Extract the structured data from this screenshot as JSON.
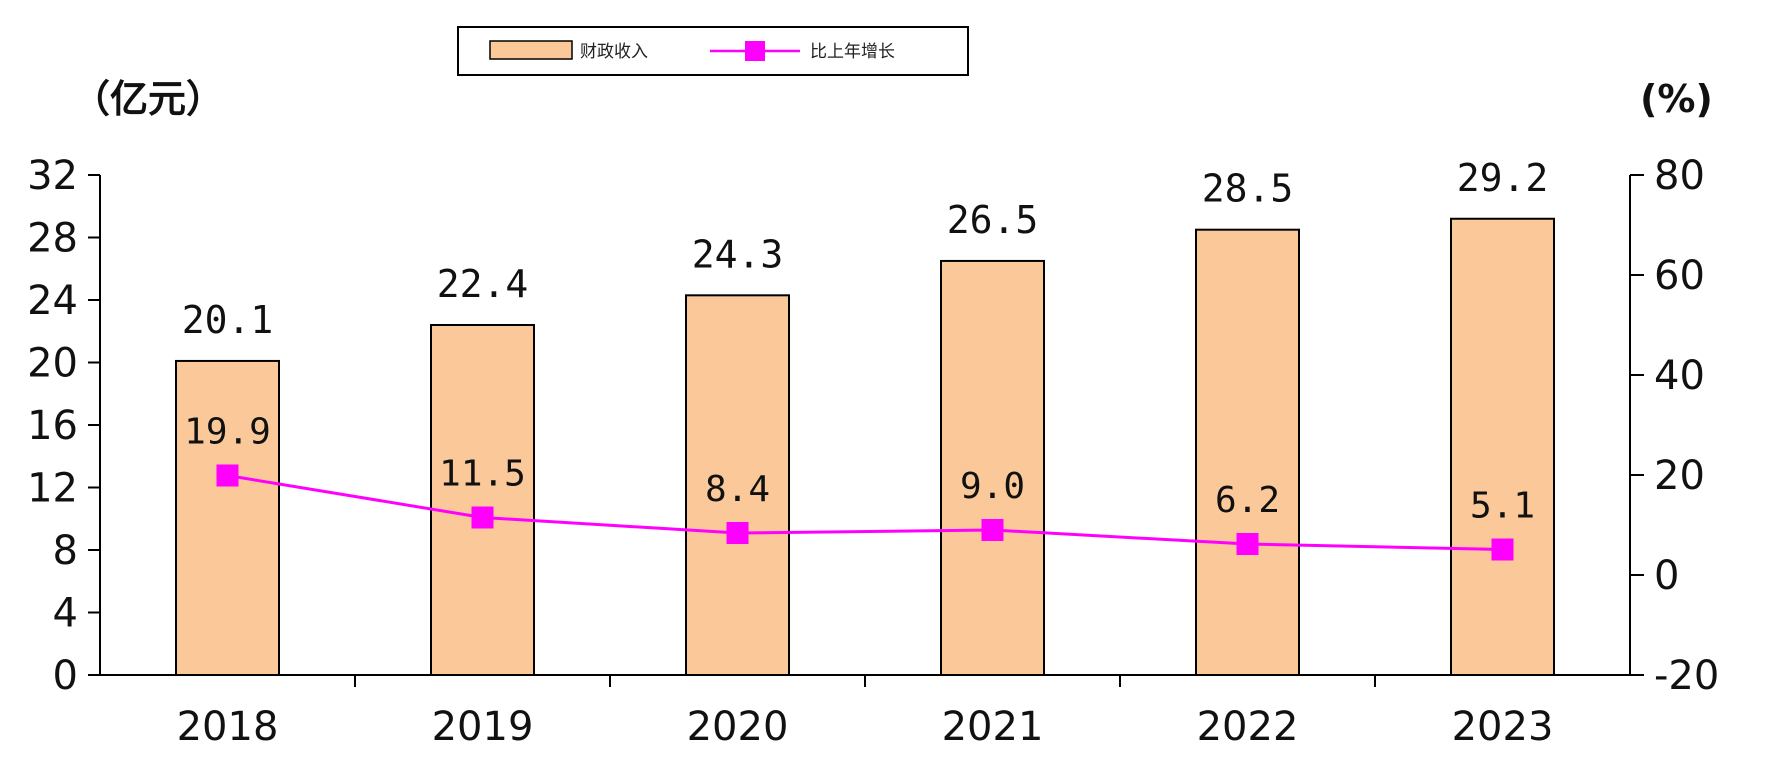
{
  "chart_data": {
    "type": "bar",
    "categories": [
      "2018",
      "2019",
      "2020",
      "2021",
      "2022",
      "2023"
    ],
    "series": [
      {
        "name": "财政收入",
        "type": "bar",
        "axis": "left",
        "values": [
          20.1,
          22.4,
          24.3,
          26.5,
          28.5,
          29.2
        ],
        "labels": [
          "20.1",
          "22.4",
          "24.3",
          "26.5",
          "28.5",
          "29.2"
        ],
        "color": "#FBC999"
      },
      {
        "name": "比上年增长",
        "type": "line",
        "axis": "right",
        "values": [
          19.9,
          11.5,
          8.4,
          9.0,
          6.2,
          5.1
        ],
        "labels": [
          "19.9",
          "11.5",
          "8.4",
          "9.0",
          "6.2",
          "5.1"
        ],
        "color": "#FF00FF"
      }
    ],
    "y_left": {
      "unit_label": "（亿元）",
      "min": 0,
      "max": 32,
      "ticks": [
        "0",
        "4",
        "8",
        "12",
        "16",
        "20",
        "24",
        "28",
        "32"
      ]
    },
    "y_right": {
      "unit_label": "(%)",
      "min": -20,
      "max": 80,
      "ticks": [
        "-20",
        "0",
        "20",
        "40",
        "60",
        "80"
      ]
    },
    "legend": {
      "placement": "top-center",
      "bar_label": "财政收入",
      "line_label": "比上年增长"
    },
    "grid": false
  }
}
